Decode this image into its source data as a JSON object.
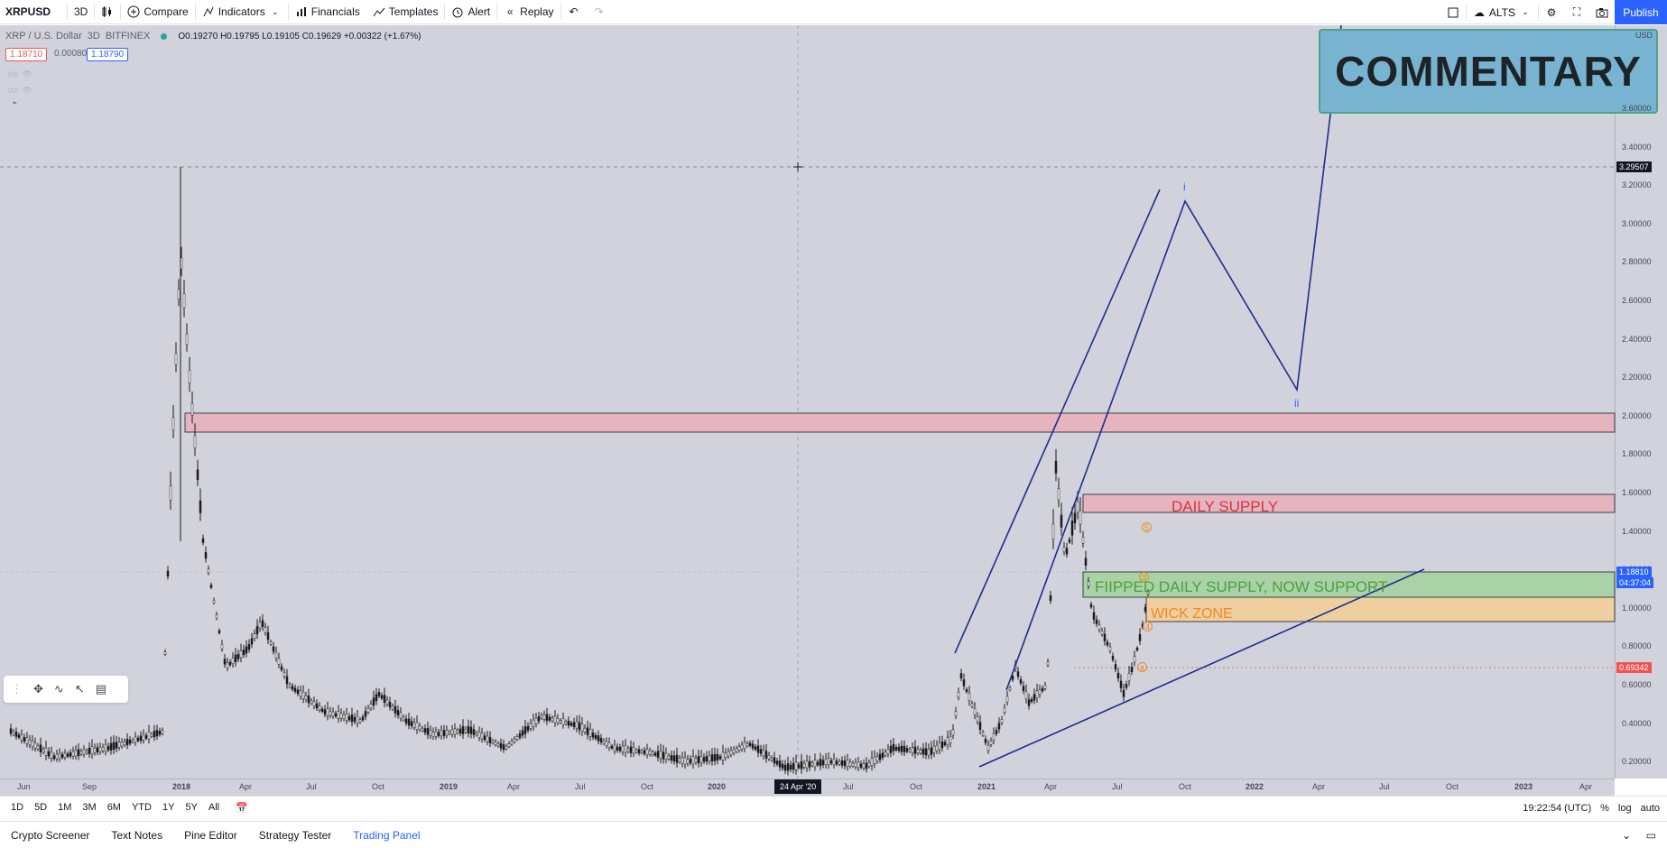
{
  "toolbar": {
    "symbol": "XRPUSD",
    "interval": "3D",
    "compare": "Compare",
    "indicators": "Indicators",
    "financials": "Financials",
    "templates": "Templates",
    "alert": "Alert",
    "replay": "Replay",
    "layout_name": "ALTS",
    "publish": "Publish"
  },
  "legend": {
    "title": "XRP / U.S. Dollar",
    "interval": "3D",
    "exchange": "BITFINEX",
    "ohlc": "O0.19270 H0.19795 L0.19105 C0.19629 +0.00322 (+1.67%)",
    "bid": "1.18710",
    "spread": "0.00080",
    "ask": "1.18790",
    "vol1": "Vol",
    "vol2": "Vol"
  },
  "commentary": "COMMENTARY",
  "annotations": {
    "daily_supply": "DAILY SUPPLY",
    "flipped": "FIIPPED DAILY SUPPLY, NOW SUPPORT",
    "wick_zone": "WICK ZONE",
    "wave_i": "i",
    "wave_ii": "ii",
    "wave_5": "5",
    "wave_3": "3",
    "wave_4": "4",
    "wave_a": "a"
  },
  "price_axis": {
    "currency": "USD",
    "labels": [
      "3.60000",
      "3.40000",
      "3.20000",
      "3.00000",
      "2.80000",
      "2.60000",
      "2.40000",
      "2.20000",
      "2.00000",
      "1.80000",
      "1.60000",
      "1.40000",
      "1.20000",
      "1.00000",
      "0.80000",
      "0.60000",
      "0.40000",
      "0.20000"
    ],
    "crosshair_price": "3.29507",
    "last_price": "1.18810",
    "countdown": "04:37:04",
    "line_price": "0.69342"
  },
  "time_axis": {
    "labels": [
      "Jun",
      "Sep",
      "2018",
      "Apr",
      "Jul",
      "Oct",
      "2019",
      "Apr",
      "Jul",
      "Oct",
      "2020",
      "Jul",
      "Oct",
      "2021",
      "Apr",
      "Jul",
      "Oct",
      "2022",
      "Apr",
      "Jul",
      "Oct",
      "2023",
      "Apr"
    ],
    "crosshair_date": "24 Apr '20"
  },
  "range_bar": {
    "ranges": [
      "1D",
      "5D",
      "1M",
      "3M",
      "6M",
      "YTD",
      "1Y",
      "5Y",
      "All"
    ],
    "clock": "19:22:54 (UTC)",
    "percent": "%",
    "log": "log",
    "auto": "auto"
  },
  "panel_tabs": [
    "Crypto Screener",
    "Text Notes",
    "Pine Editor",
    "Strategy Tester",
    "Trading Panel"
  ],
  "colors": {
    "background": "#d2d2dc",
    "accent": "#2962ff",
    "supply_zone": "#e6b4be",
    "support_zone": "#a9d2a6",
    "wick_zone": "#efcea0",
    "wave_line": "#1e2d8c"
  }
}
